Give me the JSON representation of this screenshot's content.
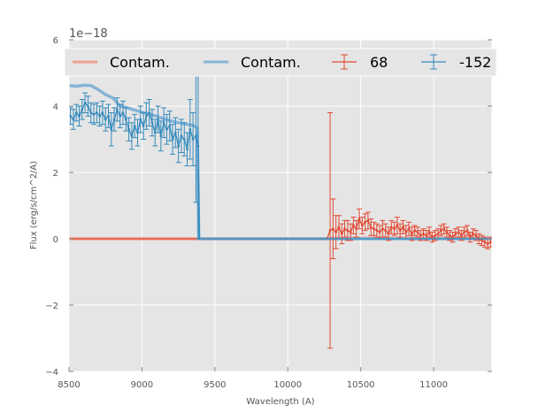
{
  "chart_data": {
    "type": "line",
    "xlabel": "Wavelength (A)",
    "ylabel": "Flux (erg/s/cm^2/A)",
    "y_offset_label": "1e−18",
    "xlim": [
      8500,
      11400
    ],
    "ylim": [
      -4,
      6
    ],
    "x_ticks": [
      8500,
      9000,
      9500,
      10000,
      10500,
      11000
    ],
    "y_ticks": [
      -4,
      -2,
      0,
      2,
      4,
      6
    ],
    "y_tick_labels": [
      "−4",
      "−2",
      "0",
      "2",
      "4",
      "6"
    ],
    "grid": true,
    "background": "#e5e5e5",
    "legend_placement": "top",
    "colors": {
      "red": "#e24a33",
      "blue": "#348abd",
      "light_red": "#f0a090",
      "light_blue": "#85b4d6"
    },
    "series": [
      {
        "name": "Contam.",
        "kind": "contam",
        "color": "#f0a090",
        "x": [
          8500,
          10280,
          10300,
          11400
        ],
        "y": [
          0,
          0,
          0.02,
          0.02
        ]
      },
      {
        "name": "Contam.",
        "kind": "contam",
        "color": "#85b4d6",
        "x": [
          8500,
          8550,
          8600,
          8650,
          8700,
          8750,
          8800,
          8850,
          8900,
          8950,
          9000,
          9050,
          9100,
          9150,
          9200,
          9250,
          9300,
          9350,
          9380,
          9390,
          11400
        ],
        "y": [
          4.62,
          4.6,
          4.63,
          4.62,
          4.5,
          4.35,
          4.25,
          4.0,
          3.95,
          3.88,
          3.82,
          3.76,
          3.7,
          3.62,
          3.55,
          3.5,
          3.46,
          3.42,
          3.35,
          0.0,
          0.0
        ]
      },
      {
        "name": "68",
        "kind": "errorbar",
        "color": "#e24a33",
        "x": [
          8500,
          10270,
          10290,
          10310,
          10330,
          10350,
          10370,
          10390,
          10410,
          10430,
          10450,
          10470,
          10490,
          10510,
          10530,
          10550,
          10570,
          10590,
          10610,
          10630,
          10650,
          10670,
          10690,
          10710,
          10730,
          10750,
          10770,
          10790,
          10810,
          10830,
          10850,
          10870,
          10890,
          10910,
          10930,
          10950,
          10970,
          10990,
          11010,
          11030,
          11050,
          11070,
          11090,
          11110,
          11130,
          11150,
          11170,
          11190,
          11210,
          11230,
          11250,
          11270,
          11290,
          11310,
          11330,
          11350,
          11370,
          11390
        ],
        "y": [
          0,
          0,
          0.25,
          0.3,
          0.2,
          0.35,
          0.15,
          0.3,
          0.25,
          0.2,
          0.4,
          0.3,
          0.6,
          0.4,
          0.5,
          0.55,
          0.35,
          0.3,
          0.25,
          0.2,
          0.3,
          0.25,
          0.15,
          0.35,
          0.3,
          0.4,
          0.25,
          0.35,
          0.2,
          0.3,
          0.15,
          0.25,
          0.2,
          0.1,
          0.15,
          0.1,
          0.2,
          0.05,
          0.1,
          0.15,
          0.25,
          0.3,
          0.2,
          0.1,
          0.05,
          0.15,
          0.2,
          0.1,
          0.2,
          0.25,
          0.05,
          0.15,
          0.1,
          0.0,
          -0.05,
          -0.1,
          -0.15,
          -0.1
        ],
        "err": [
          0,
          0,
          3.55,
          0.9,
          0.5,
          0.35,
          0.3,
          0.25,
          0.3,
          0.25,
          0.25,
          0.25,
          0.3,
          0.25,
          0.25,
          0.25,
          0.25,
          0.2,
          0.2,
          0.2,
          0.25,
          0.2,
          0.2,
          0.2,
          0.2,
          0.25,
          0.2,
          0.2,
          0.2,
          0.2,
          0.2,
          0.15,
          0.15,
          0.15,
          0.15,
          0.15,
          0.15,
          0.15,
          0.15,
          0.15,
          0.15,
          0.15,
          0.15,
          0.15,
          0.15,
          0.15,
          0.15,
          0.15,
          0.15,
          0.15,
          0.15,
          0.15,
          0.15,
          0.15,
          0.15,
          0.15,
          0.15,
          0.15
        ]
      },
      {
        "name": "-152",
        "kind": "errorbar",
        "color": "#348abd",
        "x": [
          8510,
          8530,
          8550,
          8570,
          8590,
          8610,
          8630,
          8650,
          8670,
          8690,
          8710,
          8730,
          8750,
          8770,
          8790,
          8810,
          8830,
          8850,
          8870,
          8890,
          8910,
          8930,
          8950,
          8970,
          8990,
          9010,
          9030,
          9050,
          9070,
          9090,
          9110,
          9130,
          9150,
          9170,
          9190,
          9210,
          9230,
          9250,
          9270,
          9290,
          9310,
          9330,
          9350,
          9370,
          9385,
          9395,
          11400
        ],
        "y": [
          3.7,
          3.6,
          3.8,
          3.7,
          3.9,
          4.1,
          4.0,
          3.8,
          3.75,
          3.8,
          3.7,
          3.8,
          3.6,
          3.7,
          3.3,
          3.6,
          3.9,
          3.7,
          3.8,
          3.6,
          3.3,
          3.1,
          3.4,
          3.2,
          3.6,
          3.4,
          3.7,
          3.8,
          3.5,
          3.2,
          3.6,
          3.1,
          3.5,
          3.3,
          3.4,
          3.0,
          3.2,
          2.8,
          3.1,
          3.0,
          2.7,
          3.3,
          3.0,
          3.1,
          2.8,
          0.0,
          0.0
        ],
        "err": [
          0.25,
          0.3,
          0.25,
          0.3,
          0.3,
          0.3,
          0.3,
          0.3,
          0.3,
          0.3,
          0.3,
          0.35,
          0.35,
          0.35,
          0.5,
          0.35,
          0.35,
          0.35,
          0.35,
          0.35,
          0.35,
          0.4,
          0.35,
          0.4,
          0.4,
          0.4,
          0.4,
          0.4,
          0.4,
          0.4,
          0.4,
          0.45,
          0.45,
          0.45,
          0.45,
          0.45,
          0.45,
          0.5,
          0.5,
          0.5,
          0.5,
          0.9,
          0.8,
          2.0,
          2.8,
          0,
          0
        ]
      }
    ]
  }
}
